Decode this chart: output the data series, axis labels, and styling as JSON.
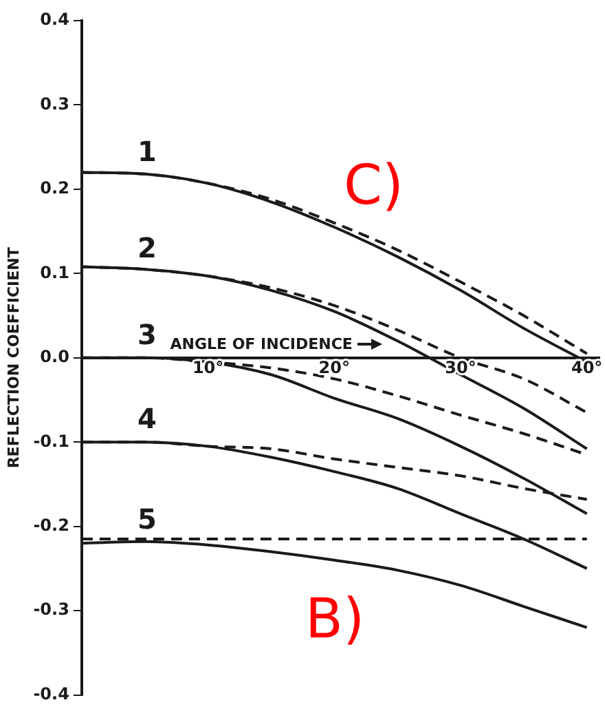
{
  "chart_data": {
    "type": "line",
    "xlabel": "ANGLE OF INCIDENCE",
    "ylabel": "REFLECTION COEFFICIENT",
    "x": [
      0,
      5,
      10,
      15,
      20,
      25,
      30,
      35,
      40
    ],
    "series": [
      {
        "color": "#1a1a1a",
        "values": [
          0.22,
          0.218,
          0.207,
          0.185,
          0.155,
          0.12,
          0.08,
          0.035,
          -0.005
        ]
      },
      {
        "color": "#1a1a1a",
        "line_style": "dashed",
        "values": [
          0.22,
          0.218,
          0.207,
          0.188,
          0.16,
          0.128,
          0.09,
          0.05,
          0.005
        ]
      },
      {
        "color": "#1a1a1a",
        "values": [
          0.108,
          0.105,
          0.097,
          0.08,
          0.055,
          0.02,
          -0.02,
          -0.06,
          -0.108
        ]
      },
      {
        "color": "#1a1a1a",
        "line_style": "dashed",
        "values": [
          0.108,
          0.105,
          0.097,
          0.083,
          0.062,
          0.033,
          0.0,
          -0.025,
          -0.065
        ]
      },
      {
        "color": "#1a1a1a",
        "values": [
          0,
          0,
          -0.005,
          -0.02,
          -0.048,
          -0.072,
          -0.105,
          -0.143,
          -0.185
        ]
      },
      {
        "color": "#1a1a1a",
        "line_style": "dashed",
        "values": [
          0,
          0,
          -0.005,
          -0.012,
          -0.025,
          -0.045,
          -0.068,
          -0.09,
          -0.115
        ]
      },
      {
        "color": "#1a1a1a",
        "values": [
          -0.1,
          -0.1,
          -0.105,
          -0.118,
          -0.135,
          -0.155,
          -0.185,
          -0.215,
          -0.25
        ]
      },
      {
        "color": "#1a1a1a",
        "line_style": "dashed",
        "values": [
          -0.1,
          -0.1,
          -0.105,
          -0.108,
          -0.12,
          -0.13,
          -0.14,
          -0.155,
          -0.168
        ]
      },
      {
        "color": "#1a1a1a",
        "values": [
          -0.22,
          -0.218,
          -0.222,
          -0.23,
          -0.24,
          -0.252,
          -0.27,
          -0.295,
          -0.32
        ]
      },
      {
        "color": "#1a1a1a",
        "line_style": "dashed",
        "values": [
          -0.215,
          -0.215,
          -0.215,
          -0.215,
          -0.215,
          -0.215,
          -0.215,
          -0.215,
          -0.215
        ]
      }
    ],
    "xlim": [
      0,
      41
    ],
    "xticks": [
      {
        "value": 10,
        "label": "10°"
      },
      {
        "value": 20,
        "label": "20°"
      },
      {
        "value": 30,
        "label": "30°"
      },
      {
        "value": 40,
        "label": "40°"
      }
    ],
    "ylim": [
      -0.4,
      0.4
    ],
    "yticks": [
      -0.4,
      -0.3,
      -0.2,
      -0.1,
      {
        "value": 0,
        "label": "0.0"
      },
      0.1,
      0.2,
      0.3,
      0.4
    ],
    "grid": false,
    "legend": false,
    "marker": "none",
    "line_style": "solid",
    "annotations": [
      "1",
      "2",
      "3",
      "4",
      "5",
      "C)",
      "B)"
    ]
  }
}
